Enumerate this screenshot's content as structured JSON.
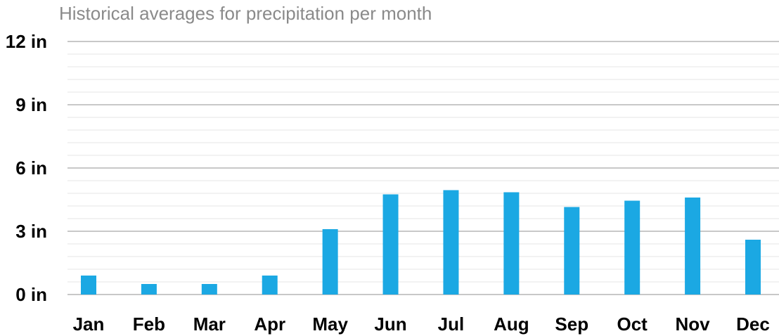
{
  "chart_data": {
    "type": "bar",
    "title": "Historical averages for precipitation per month",
    "unit": "in",
    "categories": [
      "Jan",
      "Feb",
      "Mar",
      "Apr",
      "May",
      "Jun",
      "Jul",
      "Aug",
      "Sep",
      "Oct",
      "Nov",
      "Dec"
    ],
    "values": [
      0.9,
      0.5,
      0.5,
      0.9,
      3.1,
      4.75,
      4.95,
      4.85,
      4.15,
      4.45,
      4.6,
      2.6
    ],
    "ylim": [
      0,
      12
    ],
    "yticks": [
      0,
      3,
      6,
      9,
      12
    ],
    "ytick_labels": [
      "0 in",
      "3 in",
      "6 in",
      "9 in",
      "12 in"
    ],
    "grid": true,
    "bar_color": "#1ba8e3",
    "major_grid_color": "#c8c8c8",
    "minor_grid_color": "#eeeeee"
  }
}
